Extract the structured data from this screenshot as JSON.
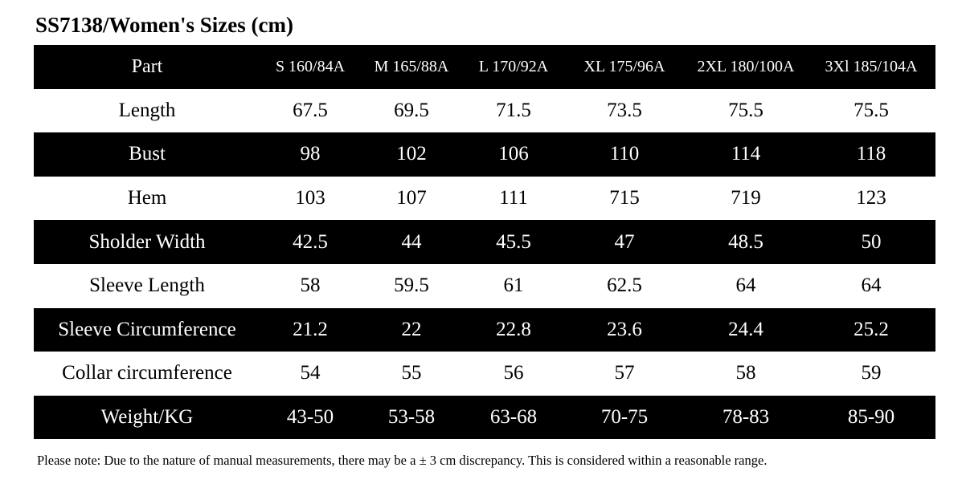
{
  "title": "SS7138/Women's Sizes (cm)",
  "table": {
    "part_header": "Part",
    "size_headers": [
      "S 160/84A",
      "M 165/88A",
      "L 170/92A",
      "XL 175/96A",
      "2XL 180/100A",
      "3Xl 185/104A"
    ],
    "rows": [
      {
        "part": "Length",
        "values": [
          "67.5",
          "69.5",
          "71.5",
          "73.5",
          "75.5",
          "75.5"
        ]
      },
      {
        "part": "Bust",
        "values": [
          "98",
          "102",
          "106",
          "110",
          "114",
          "118"
        ]
      },
      {
        "part": "Hem",
        "values": [
          "103",
          "107",
          "111",
          "715",
          "719",
          "123"
        ]
      },
      {
        "part": "Sholder Width",
        "values": [
          "42.5",
          "44",
          "45.5",
          "47",
          "48.5",
          "50"
        ]
      },
      {
        "part": "Sleeve Length",
        "values": [
          "58",
          "59.5",
          "61",
          "62.5",
          "64",
          "64"
        ]
      },
      {
        "part": "Sleeve Circumference",
        "values": [
          "21.2",
          "22",
          "22.8",
          "23.6",
          "24.4",
          "25.2"
        ]
      },
      {
        "part": "Collar circumference",
        "values": [
          "54",
          "55",
          "56",
          "57",
          "58",
          "59"
        ]
      },
      {
        "part": "Weight/KG",
        "values": [
          "43-50",
          "53-58",
          "63-68",
          "70-75",
          "78-83",
          "85-90"
        ]
      }
    ]
  },
  "note": "Please note: Due to the nature of manual measurements, there may be a ± 3 cm discrepancy. This is considered within a reasonable range.",
  "colors": {
    "dark_row_bg": "#000000",
    "dark_row_text": "#ffffff",
    "light_row_bg": "#ffffff",
    "light_row_text": "#000000"
  }
}
